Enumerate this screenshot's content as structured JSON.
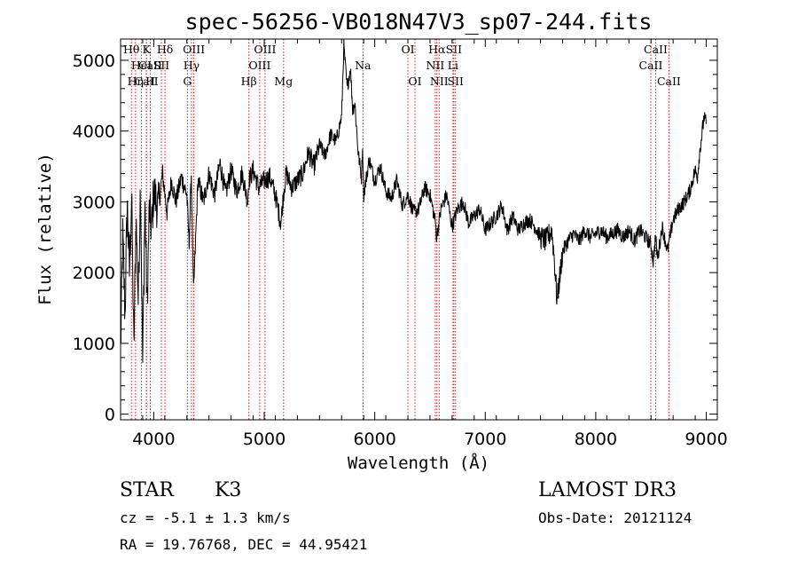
{
  "chart_data": {
    "type": "line",
    "title": "spec-56256-VB018N47V3_sp07-244.fits",
    "xlabel": "Wavelength (Å)",
    "ylabel": "Flux (relative)",
    "xlim": [
      3700,
      9100
    ],
    "ylim": [
      -80,
      5300
    ],
    "x_ticks": [
      4000,
      5000,
      6000,
      7000,
      8000,
      9000
    ],
    "y_ticks": [
      0,
      1000,
      2000,
      3000,
      4000,
      5000
    ],
    "series": [
      {
        "name": "flux",
        "x": [
          3700,
          3720,
          3740,
          3760,
          3780,
          3800,
          3820,
          3840,
          3860,
          3880,
          3900,
          3920,
          3940,
          3960,
          3980,
          4000,
          4040,
          4080,
          4120,
          4160,
          4200,
          4250,
          4300,
          4320,
          4340,
          4360,
          4400,
          4450,
          4500,
          4550,
          4600,
          4650,
          4700,
          4750,
          4800,
          4850,
          4860,
          4900,
          4950,
          5000,
          5050,
          5100,
          5150,
          5180,
          5200,
          5250,
          5300,
          5350,
          5400,
          5450,
          5500,
          5550,
          5600,
          5650,
          5700,
          5720,
          5750,
          5780,
          5800,
          5820,
          5850,
          5880,
          5890,
          5900,
          5950,
          6000,
          6050,
          6100,
          6150,
          6200,
          6250,
          6300,
          6350,
          6400,
          6450,
          6500,
          6550,
          6560,
          6600,
          6650,
          6700,
          6750,
          6800,
          6850,
          6900,
          6950,
          7000,
          7050,
          7100,
          7150,
          7200,
          7250,
          7300,
          7350,
          7400,
          7450,
          7500,
          7550,
          7600,
          7620,
          7650,
          7700,
          7750,
          7800,
          7850,
          7900,
          7950,
          8000,
          8050,
          8100,
          8150,
          8200,
          8250,
          8300,
          8350,
          8400,
          8450,
          8500,
          8520,
          8540,
          8560,
          8600,
          8650,
          8700,
          8750,
          8800,
          8850,
          8900,
          8920,
          8940,
          8960,
          8980,
          9000
        ],
        "values": [
          900,
          2500,
          1400,
          3000,
          2000,
          3100,
          900,
          2800,
          1600,
          3300,
          700,
          3000,
          1500,
          2900,
          2600,
          3150,
          2900,
          3400,
          2850,
          3300,
          3000,
          3350,
          3100,
          2400,
          3400,
          1700,
          3300,
          3000,
          3400,
          3100,
          3550,
          3100,
          3450,
          3150,
          3400,
          3000,
          3300,
          3450,
          3200,
          3300,
          3350,
          3100,
          2700,
          3200,
          3400,
          3200,
          3300,
          3400,
          3700,
          3500,
          3800,
          3650,
          3950,
          3850,
          4200,
          5200,
          4600,
          4900,
          4300,
          4400,
          3700,
          3350,
          3800,
          3100,
          3600,
          3300,
          3500,
          3150,
          3050,
          3300,
          2950,
          3100,
          2850,
          2900,
          3200,
          3100,
          2700,
          2500,
          2900,
          3100,
          2650,
          2900,
          3000,
          2700,
          2800,
          2900,
          2600,
          2700,
          2800,
          2950,
          2600,
          2800,
          2600,
          2700,
          2750,
          2650,
          2500,
          2450,
          2600,
          2300,
          1600,
          2300,
          2450,
          2550,
          2450,
          2600,
          2500,
          2550,
          2600,
          2500,
          2550,
          2600,
          2500,
          2600,
          2450,
          2600,
          2500,
          2400,
          2150,
          2500,
          2200,
          2650,
          2300,
          2750,
          2900,
          3000,
          3150,
          3450,
          3350,
          3700,
          3950,
          4200,
          4100
        ]
      }
    ],
    "spectral_lines": [
      {
        "label": "CaII",
        "x": 3934,
        "row": 2
      },
      {
        "label": "CaII",
        "x": 3969,
        "row": 1
      },
      {
        "label": "Hθ",
        "x": 3798,
        "row": 0
      },
      {
        "label": "K",
        "x": 3934,
        "row": 0
      },
      {
        "label": "Hδ",
        "x": 4102,
        "row": 0
      },
      {
        "label": "HeI",
        "x": 3889,
        "row": 1
      },
      {
        "label": "SII",
        "x": 4069,
        "row": 1
      },
      {
        "label": "Hη",
        "x": 3835,
        "row": 2
      },
      {
        "label": "H",
        "x": 3969,
        "row": 2
      },
      {
        "label": "OIII",
        "x": 4363,
        "row": 0
      },
      {
        "label": "Hγ",
        "x": 4341,
        "row": 1
      },
      {
        "label": "G",
        "x": 4305,
        "row": 2
      },
      {
        "label": "OIII",
        "x": 5007,
        "row": 0
      },
      {
        "label": "OIII",
        "x": 4959,
        "row": 1
      },
      {
        "label": "Hβ",
        "x": 4861,
        "row": 2
      },
      {
        "label": "Mg",
        "x": 5175,
        "row": 2
      },
      {
        "label": "Na",
        "x": 5893,
        "row": 1
      },
      {
        "label": "OI",
        "x": 6300,
        "row": 0
      },
      {
        "label": "OI",
        "x": 6364,
        "row": 2
      },
      {
        "label": "Hα",
        "x": 6563,
        "row": 0
      },
      {
        "label": "SII",
        "x": 6716,
        "row": 0
      },
      {
        "label": "NII",
        "x": 6548,
        "row": 1
      },
      {
        "label": "Li",
        "x": 6708,
        "row": 1
      },
      {
        "label": "NII",
        "x": 6583,
        "row": 2
      },
      {
        "label": "SII",
        "x": 6731,
        "row": 2
      },
      {
        "label": "CaII",
        "x": 8542,
        "row": 0
      },
      {
        "label": "CaII",
        "x": 8498,
        "row": 1
      },
      {
        "label": "CaII",
        "x": 8662,
        "row": 2
      }
    ]
  },
  "info": {
    "object_class": "STAR",
    "subclass": "K3",
    "survey": "LAMOST DR3",
    "cz": "cz = -5.1 ± 1.3 km/s",
    "obs_date": "Obs-Date: 20121124",
    "coords": "RA =  19.76768, DEC =  44.95421"
  },
  "colors": {
    "line_marker": "#cc2222",
    "spectrum": "#000000"
  }
}
